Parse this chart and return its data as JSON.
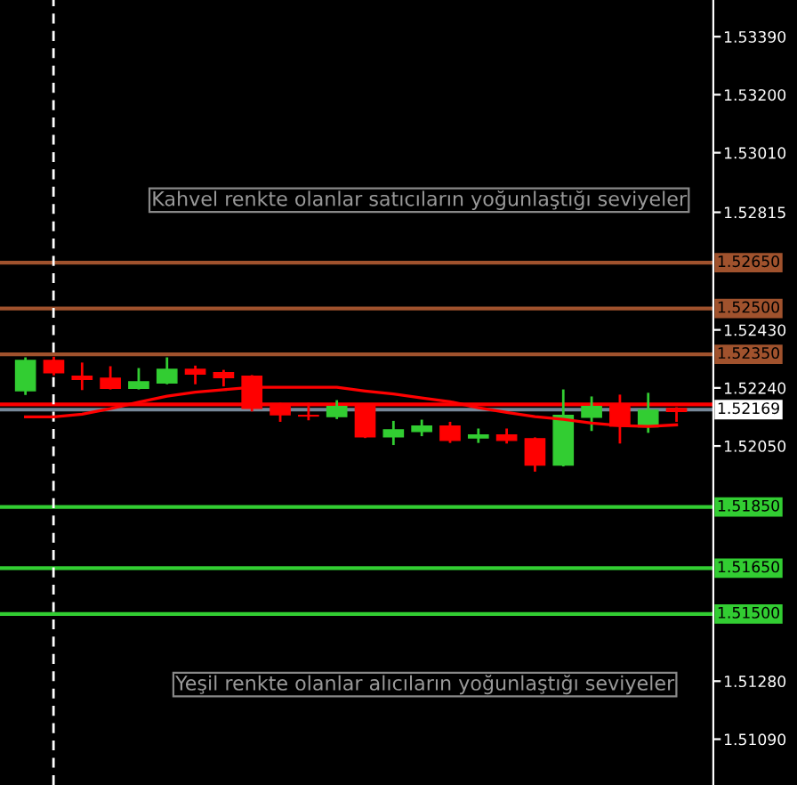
{
  "chart_data": {
    "type": "candlestick",
    "categories": [
      null,
      null,
      null,
      null,
      null,
      null,
      null,
      null,
      null,
      null,
      null,
      null,
      null,
      null,
      null,
      null,
      null,
      null,
      null,
      null,
      null,
      null,
      null,
      null
    ],
    "ohlc": [
      [
        1.52231,
        1.52336,
        1.52221,
        1.5233
      ],
      [
        1.5233,
        1.52338,
        1.52285,
        1.5229
      ],
      [
        1.52278,
        1.52319,
        1.52237,
        1.52268
      ],
      [
        1.52272,
        1.52307,
        1.52239,
        1.52239
      ],
      [
        1.52239,
        1.52301,
        1.52239,
        1.5226
      ],
      [
        1.52256,
        1.52336,
        1.52256,
        1.52301
      ],
      [
        1.52301,
        1.52309,
        1.52256,
        1.52285
      ],
      [
        1.5229,
        1.52295,
        1.52249,
        1.52274
      ],
      [
        1.52278,
        1.52278,
        1.52167,
        1.52173
      ],
      [
        1.52181,
        1.52187,
        1.52133,
        1.52152
      ],
      [
        1.5215,
        1.52187,
        1.52138,
        1.52148
      ],
      [
        1.52146,
        1.52196,
        1.52142,
        1.52179
      ],
      [
        1.52181,
        1.52181,
        1.5208,
        1.5208
      ],
      [
        1.5208,
        1.52128,
        1.52057,
        1.52103
      ],
      [
        1.52097,
        1.52132,
        1.52086,
        1.52115
      ],
      [
        1.52115,
        1.52125,
        1.52064,
        1.52068
      ],
      [
        1.52076,
        1.52103,
        1.52064,
        1.52086
      ],
      [
        1.52086,
        1.52103,
        1.52062,
        1.52068
      ],
      [
        1.52074,
        1.52074,
        1.5197,
        1.51987
      ],
      [
        1.51987,
        1.52231,
        1.51987,
        1.5215
      ],
      [
        1.52144,
        1.52208,
        1.52103,
        1.52179
      ],
      [
        1.52179,
        1.52214,
        1.52062,
        1.52115
      ],
      [
        1.52113,
        1.5222,
        1.52097,
        1.52167
      ],
      [
        1.52173,
        1.52173,
        1.52133,
        1.52163
      ]
    ],
    "series": [
      {
        "type": "line",
        "color": "#ff0000",
        "values": [
          1.52145,
          1.52145,
          1.52154,
          1.52172,
          1.52193,
          1.52213,
          1.52226,
          1.52234,
          1.52242,
          1.52242,
          1.52242,
          1.52242,
          1.5223,
          1.5222,
          1.52207,
          1.52195,
          1.52175,
          1.5216,
          1.52146,
          1.52137,
          1.52125,
          1.52117,
          1.52114,
          1.52119
        ]
      }
    ],
    "colors": [
      "#32cd32",
      "#ff0000",
      "#ff0000",
      "#ff0000",
      "#32cd32",
      "#32cd32",
      "#ff0000",
      "#ff0000",
      "#ff0000",
      "#ff0000",
      "#ff0000",
      "#32cd32",
      "#ff0000",
      "#32cd32",
      "#32cd32",
      "#ff0000",
      "#32cd32",
      "#ff0000",
      "#ff0000",
      "#32cd32",
      "#32cd32",
      "#ff0000",
      "#32cd32",
      "#ff0000"
    ],
    "ylim": [
      1.5094,
      1.5351
    ],
    "yticks": [
      {
        "value": 1.5339,
        "label": "1.53390"
      },
      {
        "value": 1.532,
        "label": "1.53200"
      },
      {
        "value": 1.5301,
        "label": "1.53010"
      },
      {
        "value": 1.52815,
        "label": "1.52815"
      },
      {
        "value": 1.5243,
        "label": "1.52430"
      },
      {
        "value": 1.5224,
        "label": "1.52240"
      },
      {
        "value": 1.5205,
        "label": "1.52050"
      },
      {
        "value": 1.5128,
        "label": "1.51280"
      },
      {
        "value": 1.5109,
        "label": "1.51090"
      }
    ],
    "ref_lines": [
      {
        "axis": "y",
        "value": 1.5265,
        "label": "1.52650",
        "color": "#a0522d"
      },
      {
        "axis": "y",
        "value": 1.525,
        "label": "1.52500",
        "color": "#a0522d"
      },
      {
        "axis": "y",
        "value": 1.5235,
        "label": "1.52350",
        "color": "#a0522d"
      },
      {
        "axis": "y",
        "value": 1.5185,
        "label": "1.51850",
        "color": "#32cd32"
      },
      {
        "axis": "y",
        "value": 1.5165,
        "label": "1.51650",
        "color": "#32cd32"
      },
      {
        "axis": "y",
        "value": 1.515,
        "label": "1.51500",
        "color": "#32cd32"
      },
      {
        "axis": "y",
        "value": 1.52186,
        "color": "#ff0000"
      },
      {
        "axis": "y",
        "value": 1.52169,
        "label": "1.52169",
        "color": "#778899"
      }
    ],
    "annotations": [
      "Kahvel renkte olanlar satıcıların yoğunlaştığı seviyeler",
      "Yeşil renkte olanlar alıcıların yoğunlaştığı seviyeler"
    ],
    "grid": false
  }
}
